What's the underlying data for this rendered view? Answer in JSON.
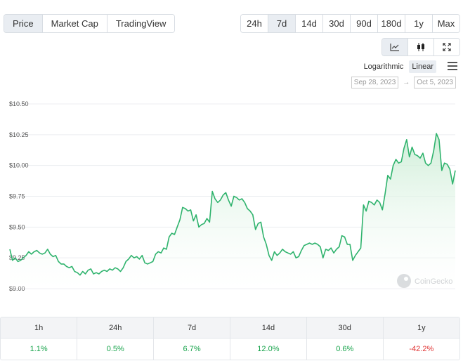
{
  "view_tabs": [
    {
      "label": "Price",
      "active": true
    },
    {
      "label": "Market Cap",
      "active": false
    },
    {
      "label": "TradingView",
      "active": false
    }
  ],
  "ranges": [
    {
      "label": "24h",
      "active": false
    },
    {
      "label": "7d",
      "active": true
    },
    {
      "label": "14d",
      "active": false
    },
    {
      "label": "30d",
      "active": false
    },
    {
      "label": "90d",
      "active": false
    },
    {
      "label": "180d",
      "active": false
    },
    {
      "label": "1y",
      "active": false
    },
    {
      "label": "Max",
      "active": false
    }
  ],
  "chart_type_buttons": [
    {
      "icon": "line-chart-icon",
      "active": true
    },
    {
      "icon": "candlestick-icon",
      "active": false
    },
    {
      "icon": "fullscreen-icon",
      "active": false
    }
  ],
  "scale": {
    "logarithmic": "Logarithmic",
    "linear": "Linear",
    "selected": "Linear"
  },
  "date_range": {
    "from": "Sep 28, 2023",
    "arrow": "→",
    "to": "Oct 5, 2023"
  },
  "watermark": "CoinGecko",
  "colors": {
    "line": "#2fb36d",
    "fill_top": "#c9ecd3",
    "fill_bottom": "#ffffff",
    "positive": "#16a34a",
    "negative": "#e03131",
    "accent_bg": "#e9edf2"
  },
  "chart_data": {
    "type": "area",
    "title": "",
    "xlabel": "",
    "ylabel": "",
    "ylim": [
      9.0,
      10.5
    ],
    "yticks": [
      9.0,
      9.25,
      9.5,
      9.75,
      10.0,
      10.25,
      10.5
    ],
    "ytick_labels": [
      "$9.00",
      "$9.25",
      "$9.50",
      "$9.75",
      "$10.00",
      "$10.25",
      "$10.50"
    ],
    "x_start": "Sep 28, 2023",
    "x_end": "Oct 5, 2023",
    "grid": true,
    "series": [
      {
        "values": [
          9.32,
          9.23,
          9.25,
          9.22,
          9.23,
          9.25,
          9.27,
          9.3,
          9.28,
          9.3,
          9.31,
          9.29,
          9.28,
          9.29,
          9.32,
          9.28,
          9.26,
          9.27,
          9.22,
          9.2,
          9.2,
          9.18,
          9.17,
          9.18,
          9.14,
          9.13,
          9.11,
          9.14,
          9.12,
          9.15,
          9.16,
          9.12,
          9.13,
          9.12,
          9.14,
          9.15,
          9.14,
          9.16,
          9.15,
          9.17,
          9.16,
          9.14,
          9.17,
          9.22,
          9.24,
          9.27,
          9.25,
          9.26,
          9.24,
          9.27,
          9.21,
          9.2,
          9.21,
          9.22,
          9.28,
          9.3,
          9.29,
          9.33,
          9.32,
          9.42,
          9.45,
          9.44,
          9.5,
          9.56,
          9.66,
          9.65,
          9.63,
          9.64,
          9.55,
          9.6,
          9.5,
          9.52,
          9.53,
          9.57,
          9.54,
          9.79,
          9.73,
          9.7,
          9.72,
          9.76,
          9.78,
          9.72,
          9.67,
          9.75,
          9.74,
          9.72,
          9.73,
          9.7,
          9.65,
          9.63,
          9.6,
          9.48,
          9.53,
          9.54,
          9.42,
          9.36,
          9.27,
          9.23,
          9.3,
          9.27,
          9.29,
          9.32,
          9.3,
          9.29,
          9.28,
          9.3,
          9.25,
          9.26,
          9.31,
          9.35,
          9.36,
          9.37,
          9.36,
          9.37,
          9.36,
          9.34,
          9.25,
          9.32,
          9.31,
          9.33,
          9.29,
          9.32,
          9.34,
          9.43,
          9.42,
          9.36,
          9.36,
          9.23,
          9.27,
          9.3,
          9.33,
          9.68,
          9.63,
          9.71,
          9.7,
          9.68,
          9.72,
          9.7,
          9.64,
          9.77,
          9.92,
          9.89,
          10.0,
          10.05,
          10.02,
          10.03,
          10.14,
          10.21,
          10.07,
          10.15,
          10.09,
          10.08,
          10.06,
          10.1,
          10.02,
          10.0,
          10.02,
          10.12,
          10.26,
          10.21,
          9.96,
          10.02,
          10.01,
          9.97,
          9.85,
          9.96
        ]
      }
    ]
  },
  "performance": {
    "headers": [
      "1h",
      "24h",
      "7d",
      "14d",
      "30d",
      "1y"
    ],
    "values": [
      {
        "text": "1.1%",
        "sign": "pos"
      },
      {
        "text": "0.5%",
        "sign": "pos"
      },
      {
        "text": "6.7%",
        "sign": "pos"
      },
      {
        "text": "12.0%",
        "sign": "pos"
      },
      {
        "text": "0.6%",
        "sign": "pos"
      },
      {
        "text": "-42.2%",
        "sign": "neg"
      }
    ]
  }
}
